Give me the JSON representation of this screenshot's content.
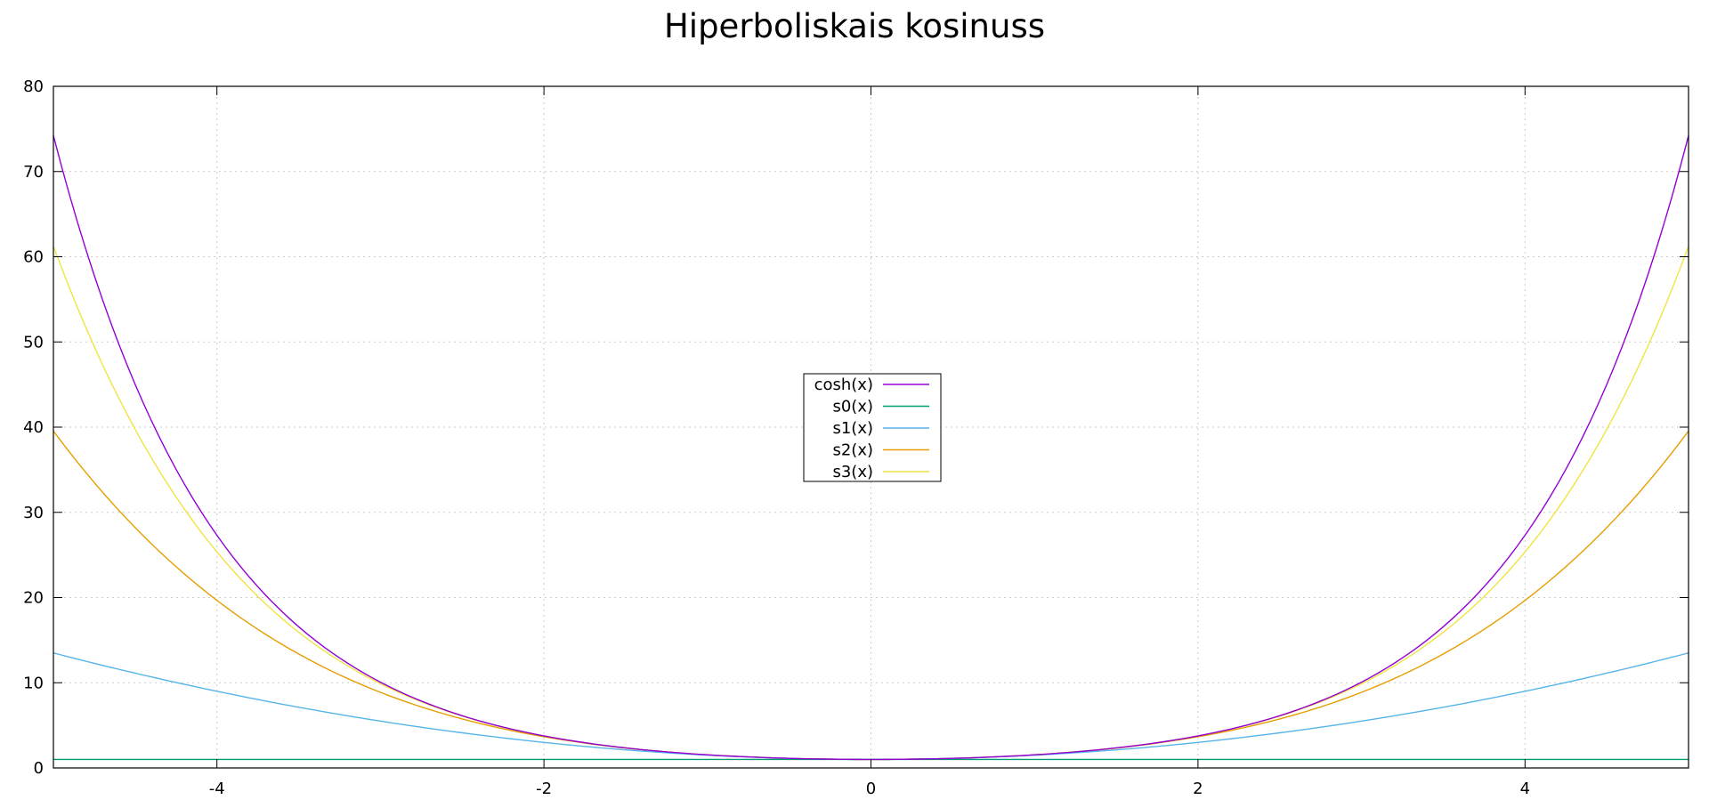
{
  "chart_data": {
    "type": "line",
    "title": "Hiperboliskais kosinuss",
    "xlabel": "",
    "ylabel": "",
    "xlim": [
      -5,
      5
    ],
    "ylim": [
      0,
      80
    ],
    "xticks": [
      -4,
      -2,
      0,
      2,
      4
    ],
    "yticks": [
      0,
      10,
      20,
      30,
      40,
      50,
      60,
      70,
      80
    ],
    "grid": true,
    "legend_position": "center",
    "series": [
      {
        "name": "cosh(x)",
        "color": "#9400d3",
        "formula": "cosh",
        "x": [
          -5,
          -4,
          -3,
          -2,
          -1,
          0,
          1,
          2,
          3,
          4,
          5
        ],
        "values": [
          74.21,
          27.31,
          10.07,
          3.76,
          1.54,
          1.0,
          1.54,
          3.76,
          10.07,
          27.31,
          74.21
        ]
      },
      {
        "name": "s0(x)",
        "color": "#009e73",
        "formula": "s0",
        "x": [
          -5,
          0,
          5
        ],
        "values": [
          1,
          1,
          1
        ]
      },
      {
        "name": "s1(x)",
        "color": "#56b4e9",
        "formula": "s1",
        "x": [
          -5,
          -4,
          -3,
          -2,
          -1,
          0,
          1,
          2,
          3,
          4,
          5
        ],
        "values": [
          13.5,
          9.0,
          5.5,
          3.0,
          1.5,
          1.0,
          1.5,
          3.0,
          5.5,
          9.0,
          13.5
        ]
      },
      {
        "name": "s2(x)",
        "color": "#e69f00",
        "formula": "s2",
        "x": [
          -5,
          -4,
          -3,
          -2,
          -1,
          0,
          1,
          2,
          3,
          4,
          5
        ],
        "values": [
          39.54,
          19.67,
          8.88,
          3.67,
          1.54,
          1.0,
          1.54,
          3.67,
          8.88,
          19.67,
          39.54
        ]
      },
      {
        "name": "s3(x)",
        "color": "#f0e442",
        "formula": "s3",
        "x": [
          -5,
          -4,
          -3,
          -2,
          -1,
          0,
          1,
          2,
          3,
          4,
          5
        ],
        "values": [
          60.97,
          25.36,
          9.89,
          3.76,
          1.54,
          1.0,
          1.54,
          3.76,
          9.89,
          25.36,
          60.97
        ]
      }
    ]
  }
}
